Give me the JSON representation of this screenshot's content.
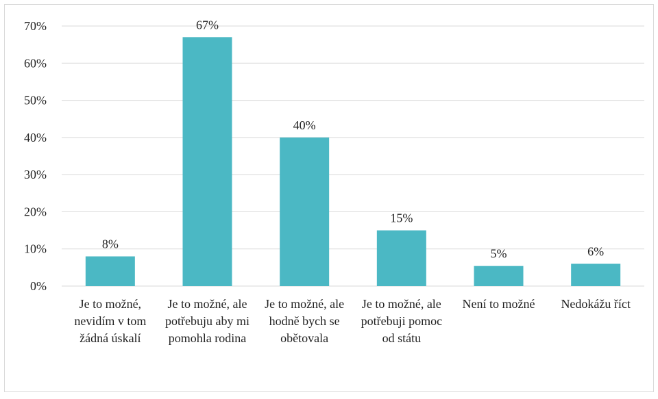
{
  "chart_data": {
    "type": "bar",
    "categories": [
      "Je to možné, nevidím v tom žádná úskalí",
      "Je to možné, ale potřebuju aby mi pomohla rodina",
      "Je to možné, ale hodně bych se obětovala",
      "Je to možné, ale potřebuji pomoc od státu",
      "Není to možné",
      "Nedokážu říct"
    ],
    "values": [
      8,
      67,
      40,
      15,
      5.4,
      6
    ],
    "value_labels": [
      "8%",
      "67%",
      "40%",
      "15%",
      "5%",
      "6%"
    ],
    "color": "#4bb8c4",
    "ylim": [
      0,
      70
    ],
    "yticks": [
      {
        "value": 0,
        "label": "0%"
      },
      {
        "value": 10,
        "label": "10%"
      },
      {
        "value": 20,
        "label": "20%"
      },
      {
        "value": 30,
        "label": "30%"
      },
      {
        "value": 40,
        "label": "40%"
      },
      {
        "value": 50,
        "label": "50%"
      },
      {
        "value": 60,
        "label": "60%"
      },
      {
        "value": 70,
        "label": "70%"
      }
    ],
    "grid": true
  }
}
